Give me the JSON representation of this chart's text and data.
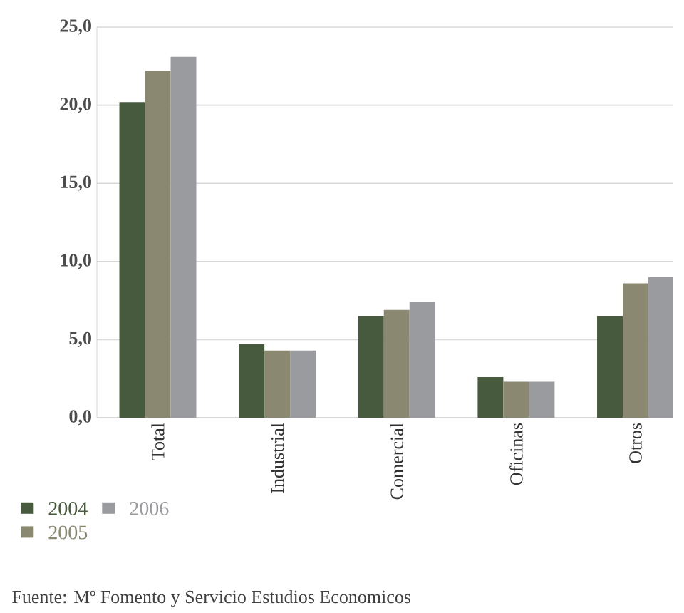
{
  "chart_data": {
    "type": "bar",
    "categories": [
      "Total",
      "Industrial",
      "Comercial",
      "Oficinas",
      "Otros"
    ],
    "series": [
      {
        "name": "2004",
        "color": "#485a3e",
        "values": [
          20.2,
          4.7,
          6.5,
          2.6,
          6.5
        ]
      },
      {
        "name": "2005",
        "color": "#8a8870",
        "values": [
          22.2,
          4.3,
          6.9,
          2.3,
          8.6
        ]
      },
      {
        "name": "2006",
        "color": "#9a9b9f",
        "values": [
          23.1,
          4.3,
          7.4,
          2.3,
          9.0
        ]
      }
    ],
    "ylim": [
      0,
      25
    ],
    "yticks": [
      {
        "value": 0,
        "label": "0,0"
      },
      {
        "value": 5,
        "label": "5,0"
      },
      {
        "value": 10,
        "label": "10,0"
      },
      {
        "value": 15,
        "label": "15,0"
      },
      {
        "value": 20,
        "label": "20,0"
      },
      {
        "value": 25,
        "label": "25,0"
      }
    ],
    "grid": "y",
    "legend": "bottom left",
    "annotations": [
      "Fuente: Mº Fomento y Servicio Estudios Economicos"
    ]
  }
}
